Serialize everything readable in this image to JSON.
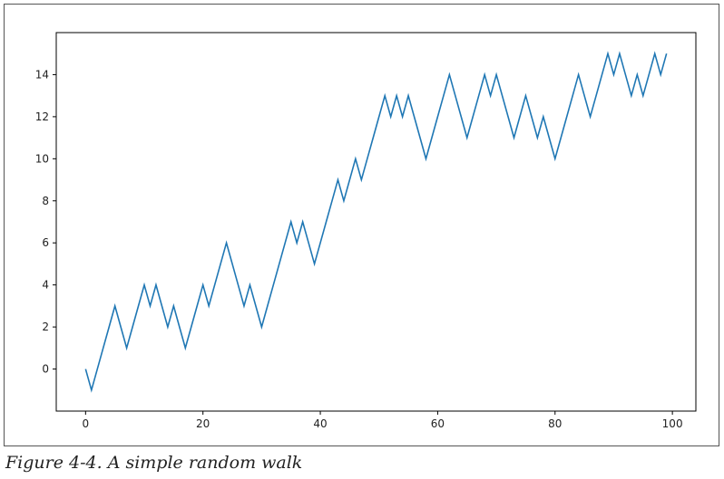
{
  "chart_data": {
    "type": "line",
    "title": "",
    "xlabel": "",
    "ylabel": "",
    "xlim": [
      -5,
      104
    ],
    "ylim": [
      -2,
      16
    ],
    "xticks": [
      0,
      20,
      40,
      60,
      80,
      100
    ],
    "yticks": [
      0,
      2,
      4,
      6,
      8,
      10,
      12,
      14
    ],
    "grid": false,
    "line_color": "#1f77b4",
    "series": [
      {
        "values": [
          0,
          -1,
          0,
          1,
          2,
          3,
          2,
          1,
          2,
          3,
          4,
          3,
          4,
          3,
          2,
          3,
          2,
          1,
          2,
          3,
          4,
          3,
          4,
          5,
          6,
          5,
          4,
          3,
          4,
          3,
          2,
          3,
          4,
          5,
          6,
          7,
          6,
          7,
          6,
          5,
          6,
          7,
          8,
          9,
          8,
          9,
          10,
          9,
          10,
          11,
          12,
          13,
          12,
          13,
          12,
          13,
          12,
          11,
          10,
          11,
          12,
          13,
          14,
          13,
          12,
          11,
          12,
          13,
          14,
          13,
          14,
          13,
          12,
          11,
          12,
          13,
          12,
          11,
          12,
          11,
          10,
          11,
          12,
          13,
          14,
          13,
          12,
          13,
          14,
          15,
          14,
          15,
          14,
          13,
          14,
          13,
          14,
          15,
          14,
          15
        ]
      }
    ]
  },
  "caption": "Figure 4-4. A simple random walk"
}
